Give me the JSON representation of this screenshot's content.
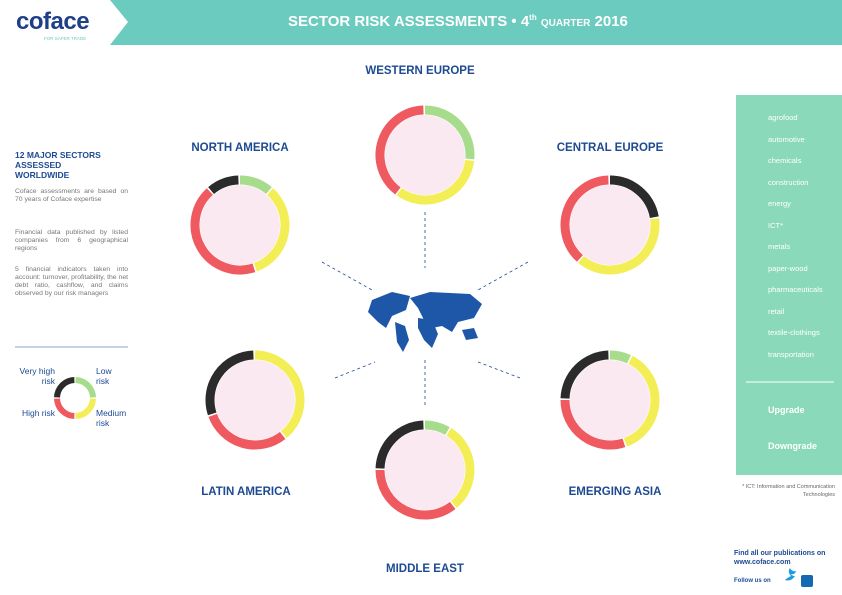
{
  "header": {
    "logo": "coface",
    "tagline": "FOR SAFER TRADE",
    "title": "SECTOR RISK ASSESSMENTS •",
    "quarter_num": "4",
    "quarter_sup": "th",
    "quarter_word": "QUARTER",
    "year": "2016"
  },
  "intro": {
    "title": "12 MAJOR SECTORS ASSESSED WORLDWIDE",
    "paragraphs": [
      "Coface assessments are based on 70 years of Coface expertise",
      "Financial data published by listed companies from 6 geographical regions",
      "5 financial indicators taken into account: turnover, profitability, the net debt ratio, cashflow, and claims observed by our risk managers"
    ]
  },
  "risk_legend": {
    "very_high": "Very high risk",
    "low": "Low risk",
    "high": "High risk",
    "medium": "Medium risk"
  },
  "regions": [
    "WESTERN EUROPE",
    "NORTH AMERICA",
    "CENTRAL EUROPE",
    "LATIN AMERICA",
    "EMERGING ASIA",
    "MIDDLE EAST"
  ],
  "sectors": [
    "agrofood",
    "automotive",
    "chemicals",
    "construction",
    "energy",
    "ICT*",
    "metals",
    "paper-wood",
    "pharmaceuticals",
    "retail",
    "textile-clothings",
    "transportation"
  ],
  "changes": [
    "Upgrade",
    "Downgrade"
  ],
  "footnote": "* ICT: Information and Communication Technologies",
  "footer": {
    "publications": "Find all our publications on",
    "site": "www.coface.com",
    "follow": "Follow us on"
  }
}
